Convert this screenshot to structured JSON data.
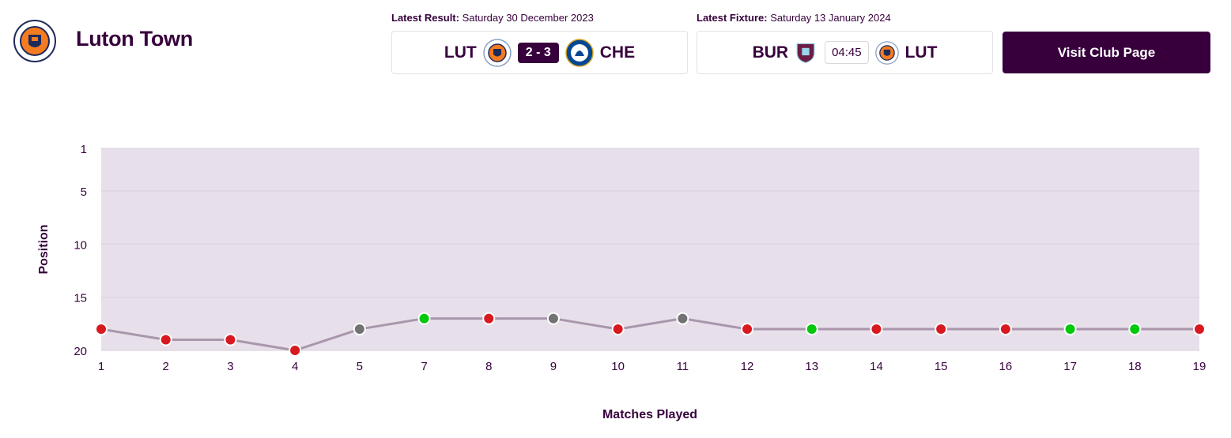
{
  "club": {
    "name": "Luton Town"
  },
  "latest_result": {
    "label": "Latest Result",
    "date": "Saturday 30 December 2023",
    "home": "LUT",
    "away": "CHE",
    "score": "2 - 3"
  },
  "latest_fixture": {
    "label": "Latest Fixture",
    "date": "Saturday 13 January 2024",
    "home": "BUR",
    "away": "LUT",
    "time": "04:45"
  },
  "button": {
    "label": "Visit Club Page"
  },
  "colors": {
    "brand": "#37003c",
    "win": "#00c80a",
    "draw": "#727272",
    "loss": "#d81920",
    "plot_bg": "#e7dfe9",
    "line": "#a996ac"
  },
  "chart_data": {
    "type": "line",
    "xlabel": "Matches Played",
    "ylabel": "Position",
    "ylim": [
      1,
      20
    ],
    "y_ticks": [
      1,
      5,
      10,
      15,
      20
    ],
    "y_inverted": true,
    "categories": [
      "1",
      "2",
      "3",
      "4",
      "5",
      "7",
      "8",
      "9",
      "10",
      "11",
      "12",
      "13",
      "14",
      "15",
      "16",
      "17",
      "18",
      "19"
    ],
    "series": [
      {
        "name": "Position",
        "values": [
          18,
          19,
          19,
          20,
          18,
          17,
          17,
          17,
          18,
          17,
          18,
          18,
          18,
          18,
          18,
          18,
          18,
          18
        ],
        "results": [
          "L",
          "L",
          "L",
          "L",
          "D",
          "W",
          "L",
          "D",
          "L",
          "D",
          "L",
          "W",
          "L",
          "L",
          "L",
          "W",
          "W",
          "L"
        ]
      }
    ]
  }
}
